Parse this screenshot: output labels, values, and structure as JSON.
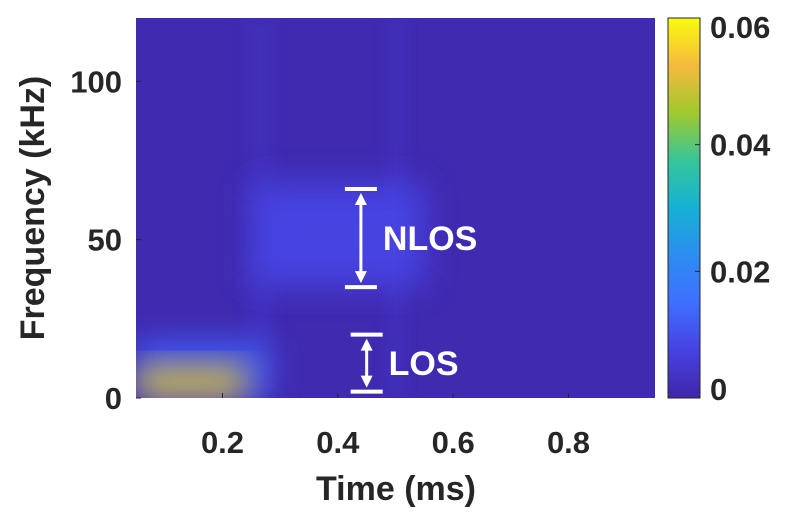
{
  "chart_data": {
    "type": "heatmap",
    "title": "",
    "xlabel": "Time (ms)",
    "ylabel": "Frequency (kHz)",
    "xlim": [
      0.05,
      0.95
    ],
    "ylim": [
      0,
      120
    ],
    "x_ticks": [
      {
        "value": 0.2,
        "label": "0.2"
      },
      {
        "value": 0.4,
        "label": "0.4"
      },
      {
        "value": 0.6,
        "label": "0.6"
      },
      {
        "value": 0.8,
        "label": "0.8"
      }
    ],
    "y_ticks": [
      {
        "value": 0,
        "label": "0"
      },
      {
        "value": 50,
        "label": "50"
      },
      {
        "value": 100,
        "label": "100"
      }
    ],
    "colorbar": {
      "colormap": "parula",
      "range": [
        0,
        0.06
      ],
      "ticks": [
        {
          "value": 0,
          "label": "0"
        },
        {
          "value": 0.02,
          "label": "0.02"
        },
        {
          "value": 0.04,
          "label": "0.04"
        },
        {
          "value": 0.06,
          "label": "0.06"
        }
      ]
    },
    "background_value": 0.001,
    "regions": [
      {
        "x": [
          0.05,
          0.24
        ],
        "y": [
          0,
          10
        ],
        "value": 0.05
      },
      {
        "x": [
          0.05,
          0.28
        ],
        "y": [
          0,
          18
        ],
        "value": 0.012
      },
      {
        "x": [
          0.25,
          0.55
        ],
        "y": [
          35,
          68
        ],
        "value": 0.008
      },
      {
        "x": [
          0.24,
          0.29
        ],
        "y": [
          0,
          120
        ],
        "value": 0.003
      },
      {
        "x": [
          0.48,
          0.52
        ],
        "y": [
          0,
          120
        ],
        "value": 0.003
      }
    ],
    "annotations": [
      {
        "label": "NLOS",
        "x": 0.44,
        "y_range": [
          35,
          66
        ]
      },
      {
        "label": "LOS",
        "x": 0.45,
        "y_range": [
          2,
          20
        ]
      }
    ]
  }
}
